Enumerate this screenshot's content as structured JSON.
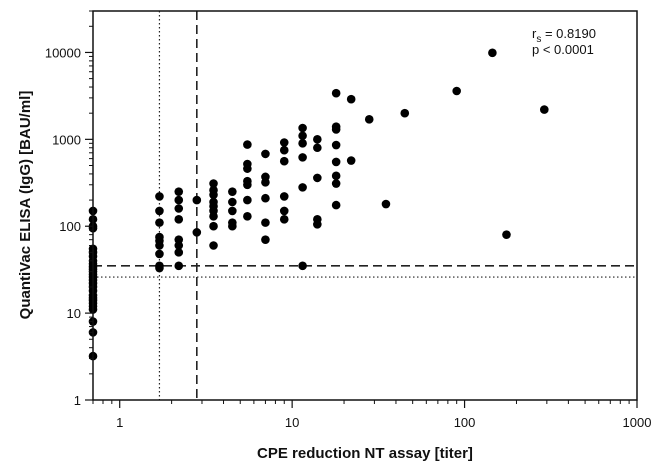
{
  "chart_data": {
    "type": "scatter",
    "xlabel": "CPE reduction NT assay [titer]",
    "ylabel": "QuantiVac ELISA (IgG) [BAU/ml]",
    "x_scale": "log",
    "y_scale": "log",
    "xlim": [
      0.7,
      1000
    ],
    "ylim": [
      1,
      30000
    ],
    "x_ticks": [
      1,
      10,
      100,
      1000
    ],
    "x_tick_labels": [
      "1",
      "10",
      "100",
      "1000"
    ],
    "y_ticks": [
      1,
      10,
      100,
      1000,
      10000
    ],
    "y_tick_labels": [
      "1",
      "10",
      "100",
      "1000",
      "10000"
    ],
    "grid": false,
    "annotation": {
      "rs_symbol": "r",
      "rs_subscript": "s",
      "rs_value": " = 0.8190",
      "p_text": "p < 0.0001"
    },
    "reference_lines": {
      "vertical_dotted_x": 1.7,
      "vertical_dashed_x": 2.8,
      "horizontal_dashed_y": 35,
      "horizontal_dotted_y": 26
    },
    "points": [
      [
        0.7,
        150
      ],
      [
        0.7,
        120
      ],
      [
        0.7,
        100
      ],
      [
        0.7,
        95
      ],
      [
        0.7,
        55
      ],
      [
        0.7,
        50
      ],
      [
        0.7,
        45
      ],
      [
        0.7,
        40
      ],
      [
        0.7,
        37
      ],
      [
        0.7,
        34
      ],
      [
        0.7,
        32
      ],
      [
        0.7,
        30
      ],
      [
        0.7,
        28
      ],
      [
        0.7,
        26
      ],
      [
        0.7,
        24
      ],
      [
        0.7,
        22
      ],
      [
        0.7,
        20
      ],
      [
        0.7,
        18
      ],
      [
        0.7,
        16
      ],
      [
        0.7,
        15
      ],
      [
        0.7,
        14
      ],
      [
        0.7,
        13
      ],
      [
        0.7,
        12
      ],
      [
        0.7,
        11
      ],
      [
        0.7,
        8
      ],
      [
        0.7,
        6
      ],
      [
        0.7,
        3.2
      ],
      [
        1.7,
        220
      ],
      [
        1.7,
        150
      ],
      [
        1.7,
        110
      ],
      [
        1.7,
        75
      ],
      [
        1.7,
        68
      ],
      [
        1.7,
        60
      ],
      [
        1.7,
        48
      ],
      [
        1.7,
        35
      ],
      [
        1.7,
        33
      ],
      [
        2.2,
        250
      ],
      [
        2.2,
        200
      ],
      [
        2.2,
        160
      ],
      [
        2.2,
        120
      ],
      [
        2.2,
        70
      ],
      [
        2.2,
        60
      ],
      [
        2.2,
        50
      ],
      [
        2.2,
        35
      ],
      [
        2.8,
        200
      ],
      [
        2.8,
        85
      ],
      [
        3.5,
        310
      ],
      [
        3.5,
        260
      ],
      [
        3.5,
        230
      ],
      [
        3.5,
        190
      ],
      [
        3.5,
        170
      ],
      [
        3.5,
        150
      ],
      [
        3.5,
        130
      ],
      [
        3.5,
        100
      ],
      [
        3.5,
        60
      ],
      [
        4.5,
        250
      ],
      [
        4.5,
        190
      ],
      [
        4.5,
        150
      ],
      [
        4.5,
        110
      ],
      [
        4.5,
        100
      ],
      [
        5.5,
        870
      ],
      [
        5.5,
        520
      ],
      [
        5.5,
        460
      ],
      [
        5.5,
        330
      ],
      [
        5.5,
        300
      ],
      [
        5.5,
        200
      ],
      [
        5.5,
        130
      ],
      [
        7,
        680
      ],
      [
        7,
        370
      ],
      [
        7,
        320
      ],
      [
        7,
        210
      ],
      [
        7,
        110
      ],
      [
        7,
        70
      ],
      [
        9,
        920
      ],
      [
        9,
        750
      ],
      [
        9,
        560
      ],
      [
        9,
        220
      ],
      [
        9,
        150
      ],
      [
        9,
        120
      ],
      [
        11.5,
        1350
      ],
      [
        11.5,
        1100
      ],
      [
        11.5,
        900
      ],
      [
        11.5,
        620
      ],
      [
        11.5,
        280
      ],
      [
        11.5,
        35
      ],
      [
        14,
        1000
      ],
      [
        14,
        800
      ],
      [
        14,
        360
      ],
      [
        14,
        120
      ],
      [
        14,
        105
      ],
      [
        18,
        3400
      ],
      [
        18,
        1400
      ],
      [
        18,
        1300
      ],
      [
        18,
        860
      ],
      [
        18,
        550
      ],
      [
        18,
        380
      ],
      [
        18,
        310
      ],
      [
        18,
        175
      ],
      [
        22,
        2900
      ],
      [
        22,
        570
      ],
      [
        28,
        1700
      ],
      [
        35,
        180
      ],
      [
        45,
        2000
      ],
      [
        90,
        3600
      ],
      [
        145,
        9900
      ],
      [
        175,
        80
      ],
      [
        290,
        2200
      ]
    ]
  }
}
